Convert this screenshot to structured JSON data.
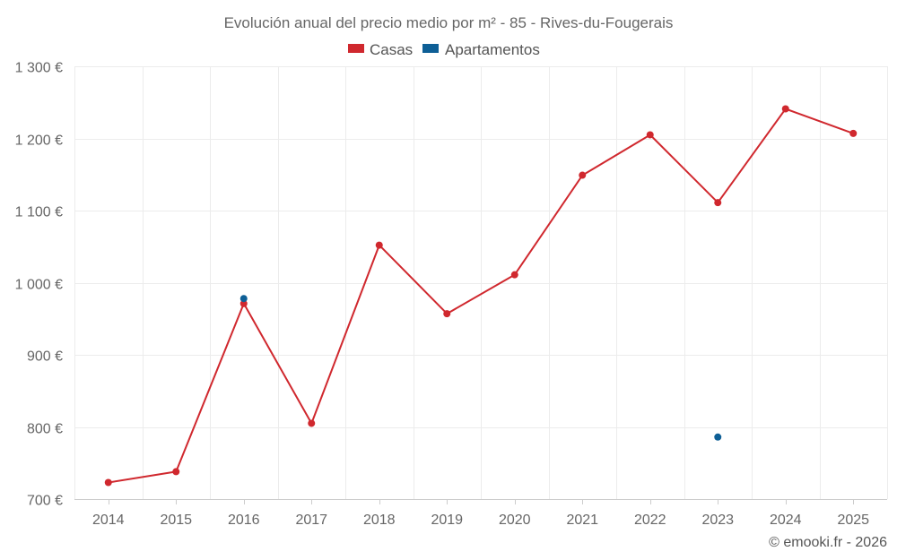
{
  "chart_data": {
    "type": "line",
    "title": "Evolución anual del precio medio por m² - 85 - Rives-du-Fougerais",
    "xlabel": "",
    "ylabel": "",
    "categories": [
      "2014",
      "2015",
      "2016",
      "2017",
      "2018",
      "2019",
      "2020",
      "2021",
      "2022",
      "2023",
      "2024",
      "2025"
    ],
    "ylim": [
      700,
      1300
    ],
    "yticks": [
      700,
      800,
      900,
      1000,
      1100,
      1200,
      1300
    ],
    "ytick_labels": [
      "700 €",
      "800 €",
      "900 €",
      "1 000 €",
      "1 100 €",
      "1 200 €",
      "1 300 €"
    ],
    "grid": true,
    "legend_position": "top-center",
    "series": [
      {
        "name": "Casas",
        "color": "#d0282e",
        "values": [
          723,
          738,
          971,
          805,
          1052,
          957,
          1011,
          1149,
          1205,
          1111,
          1241,
          1207
        ]
      },
      {
        "name": "Apartamentos",
        "color": "#0e5f96",
        "values": [
          null,
          null,
          978,
          null,
          null,
          null,
          null,
          null,
          null,
          786,
          null,
          null
        ]
      }
    ]
  },
  "credit": "© emooki.fr - 2026"
}
